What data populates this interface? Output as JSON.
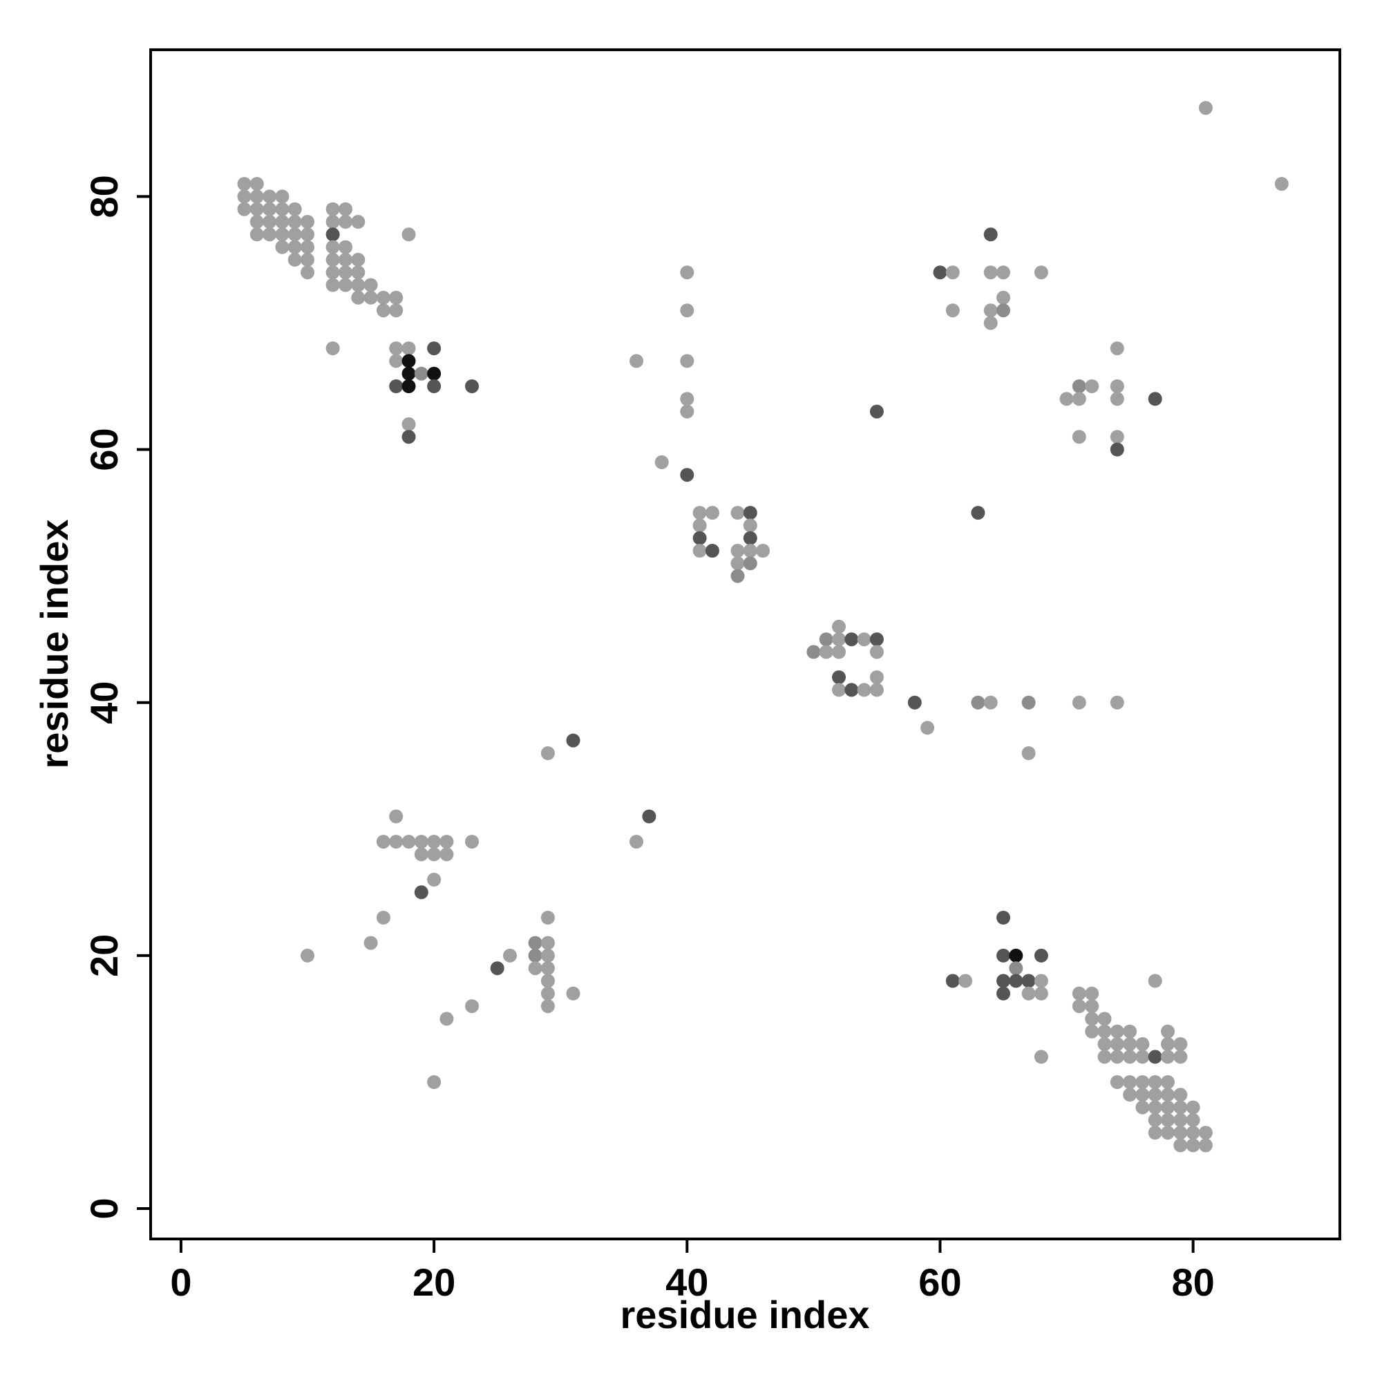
{
  "chart_data": {
    "type": "scatter",
    "title": "",
    "xlabel": "residue index",
    "ylabel": "residue index",
    "xlim": [
      -2.4,
      91.6
    ],
    "ylim": [
      -2.4,
      91.6
    ],
    "xticks": [
      0,
      20,
      40,
      60,
      80
    ],
    "yticks": [
      0,
      20,
      40,
      60,
      80
    ],
    "grid": false,
    "legend": "none",
    "shade_colors": {
      "light": "#a0a0a0",
      "medium": "#8c8c8c",
      "dark": "#555555",
      "black": "#111111"
    },
    "points": [
      [
        5,
        81,
        "light"
      ],
      [
        6,
        81,
        "light"
      ],
      [
        5,
        80,
        "light"
      ],
      [
        6,
        80,
        "light"
      ],
      [
        7,
        80,
        "light"
      ],
      [
        8,
        80,
        "light"
      ],
      [
        5,
        79,
        "light"
      ],
      [
        6,
        79,
        "light"
      ],
      [
        7,
        79,
        "light"
      ],
      [
        8,
        79,
        "light"
      ],
      [
        9,
        79,
        "light"
      ],
      [
        6,
        78,
        "light"
      ],
      [
        7,
        78,
        "light"
      ],
      [
        8,
        78,
        "light"
      ],
      [
        9,
        78,
        "light"
      ],
      [
        10,
        78,
        "light"
      ],
      [
        6,
        77,
        "light"
      ],
      [
        7,
        77,
        "light"
      ],
      [
        8,
        77,
        "light"
      ],
      [
        9,
        77,
        "light"
      ],
      [
        10,
        77,
        "light"
      ],
      [
        8,
        76,
        "light"
      ],
      [
        9,
        76,
        "light"
      ],
      [
        10,
        76,
        "light"
      ],
      [
        9,
        75,
        "light"
      ],
      [
        10,
        75,
        "light"
      ],
      [
        10,
        74,
        "light"
      ],
      [
        12,
        79,
        "light"
      ],
      [
        13,
        79,
        "light"
      ],
      [
        12,
        78,
        "light"
      ],
      [
        13,
        78,
        "light"
      ],
      [
        14,
        78,
        "light"
      ],
      [
        12,
        77,
        "dark"
      ],
      [
        18,
        77,
        "light"
      ],
      [
        12,
        76,
        "light"
      ],
      [
        13,
        76,
        "light"
      ],
      [
        12,
        75,
        "light"
      ],
      [
        13,
        75,
        "light"
      ],
      [
        14,
        75,
        "light"
      ],
      [
        12,
        74,
        "light"
      ],
      [
        13,
        74,
        "light"
      ],
      [
        14,
        74,
        "light"
      ],
      [
        12,
        73,
        "light"
      ],
      [
        13,
        73,
        "light"
      ],
      [
        14,
        73,
        "light"
      ],
      [
        15,
        73,
        "light"
      ],
      [
        14,
        72,
        "light"
      ],
      [
        15,
        72,
        "light"
      ],
      [
        16,
        72,
        "light"
      ],
      [
        17,
        72,
        "light"
      ],
      [
        16,
        71,
        "light"
      ],
      [
        17,
        71,
        "light"
      ],
      [
        12,
        68,
        "light"
      ],
      [
        17,
        68,
        "light"
      ],
      [
        18,
        68,
        "light"
      ],
      [
        20,
        68,
        "dark"
      ],
      [
        17,
        67,
        "light"
      ],
      [
        18,
        67,
        "black"
      ],
      [
        18,
        66,
        "black"
      ],
      [
        19,
        66,
        "medium"
      ],
      [
        20,
        66,
        "black"
      ],
      [
        17,
        65,
        "dark"
      ],
      [
        18,
        65,
        "black"
      ],
      [
        20,
        65,
        "dark"
      ],
      [
        23,
        65,
        "dark"
      ],
      [
        18,
        62,
        "light"
      ],
      [
        18,
        61,
        "dark"
      ],
      [
        40,
        74,
        "light"
      ],
      [
        40,
        71,
        "light"
      ],
      [
        36,
        67,
        "light"
      ],
      [
        40,
        67,
        "light"
      ],
      [
        40,
        64,
        "light"
      ],
      [
        40,
        63,
        "light"
      ],
      [
        38,
        59,
        "light"
      ],
      [
        40,
        58,
        "dark"
      ],
      [
        41,
        55,
        "light"
      ],
      [
        42,
        55,
        "light"
      ],
      [
        44,
        55,
        "light"
      ],
      [
        45,
        55,
        "dark"
      ],
      [
        41,
        54,
        "light"
      ],
      [
        45,
        54,
        "light"
      ],
      [
        41,
        53,
        "dark"
      ],
      [
        45,
        53,
        "dark"
      ],
      [
        41,
        52,
        "light"
      ],
      [
        42,
        52,
        "dark"
      ],
      [
        44,
        52,
        "light"
      ],
      [
        45,
        52,
        "light"
      ],
      [
        46,
        52,
        "light"
      ],
      [
        44,
        51,
        "light"
      ],
      [
        45,
        51,
        "medium"
      ],
      [
        44,
        50,
        "medium"
      ],
      [
        52,
        46,
        "light"
      ],
      [
        51,
        45,
        "medium"
      ],
      [
        52,
        45,
        "light"
      ],
      [
        53,
        45,
        "dark"
      ],
      [
        54,
        45,
        "light"
      ],
      [
        55,
        45,
        "dark"
      ],
      [
        50,
        44,
        "medium"
      ],
      [
        51,
        44,
        "light"
      ],
      [
        52,
        44,
        "light"
      ],
      [
        55,
        44,
        "light"
      ],
      [
        52,
        42,
        "dark"
      ],
      [
        55,
        42,
        "light"
      ],
      [
        52,
        41,
        "light"
      ],
      [
        53,
        41,
        "dark"
      ],
      [
        54,
        41,
        "light"
      ],
      [
        55,
        41,
        "light"
      ],
      [
        58,
        40,
        "dark"
      ],
      [
        59,
        38,
        "light"
      ],
      [
        63,
        40,
        "medium"
      ],
      [
        64,
        40,
        "light"
      ],
      [
        67,
        40,
        "medium"
      ],
      [
        71,
        40,
        "light"
      ],
      [
        74,
        40,
        "light"
      ],
      [
        67,
        36,
        "light"
      ],
      [
        55,
        63,
        "dark"
      ],
      [
        63,
        55,
        "dark"
      ],
      [
        64,
        77,
        "dark"
      ],
      [
        60,
        74,
        "dark"
      ],
      [
        61,
        74,
        "light"
      ],
      [
        64,
        74,
        "light"
      ],
      [
        65,
        74,
        "light"
      ],
      [
        68,
        74,
        "light"
      ],
      [
        65,
        72,
        "light"
      ],
      [
        61,
        71,
        "light"
      ],
      [
        64,
        71,
        "light"
      ],
      [
        65,
        71,
        "medium"
      ],
      [
        64,
        70,
        "light"
      ],
      [
        74,
        68,
        "light"
      ],
      [
        71,
        65,
        "medium"
      ],
      [
        72,
        65,
        "light"
      ],
      [
        74,
        65,
        "light"
      ],
      [
        70,
        64,
        "light"
      ],
      [
        71,
        64,
        "light"
      ],
      [
        74,
        64,
        "light"
      ],
      [
        77,
        64,
        "dark"
      ],
      [
        71,
        61,
        "light"
      ],
      [
        74,
        61,
        "light"
      ],
      [
        74,
        60,
        "dark"
      ],
      [
        81,
        87,
        "light"
      ],
      [
        87,
        81,
        "light"
      ],
      [
        29,
        36,
        "light"
      ],
      [
        31,
        37,
        "dark"
      ],
      [
        37,
        31,
        "dark"
      ],
      [
        36,
        29,
        "light"
      ],
      [
        17,
        31,
        "light"
      ],
      [
        16,
        29,
        "light"
      ],
      [
        17,
        29,
        "light"
      ],
      [
        18,
        29,
        "light"
      ],
      [
        19,
        29,
        "light"
      ],
      [
        20,
        29,
        "light"
      ],
      [
        21,
        29,
        "light"
      ],
      [
        23,
        29,
        "light"
      ],
      [
        19,
        28,
        "light"
      ],
      [
        20,
        28,
        "light"
      ],
      [
        21,
        28,
        "light"
      ],
      [
        20,
        26,
        "light"
      ],
      [
        19,
        25,
        "dark"
      ],
      [
        16,
        23,
        "light"
      ],
      [
        29,
        23,
        "light"
      ],
      [
        15,
        21,
        "light"
      ],
      [
        10,
        20,
        "light"
      ],
      [
        28,
        21,
        "medium"
      ],
      [
        29,
        21,
        "light"
      ],
      [
        26,
        20,
        "light"
      ],
      [
        28,
        20,
        "medium"
      ],
      [
        29,
        20,
        "light"
      ],
      [
        25,
        19,
        "dark"
      ],
      [
        28,
        19,
        "light"
      ],
      [
        29,
        19,
        "light"
      ],
      [
        29,
        18,
        "light"
      ],
      [
        29,
        17,
        "light"
      ],
      [
        31,
        17,
        "light"
      ],
      [
        23,
        16,
        "light"
      ],
      [
        29,
        16,
        "light"
      ],
      [
        21,
        15,
        "light"
      ],
      [
        20,
        10,
        "light"
      ],
      [
        65,
        23,
        "dark"
      ],
      [
        65,
        20,
        "dark"
      ],
      [
        66,
        20,
        "black"
      ],
      [
        68,
        20,
        "dark"
      ],
      [
        66,
        19,
        "medium"
      ],
      [
        61,
        18,
        "dark"
      ],
      [
        62,
        18,
        "light"
      ],
      [
        65,
        18,
        "dark"
      ],
      [
        66,
        18,
        "dark"
      ],
      [
        67,
        18,
        "dark"
      ],
      [
        68,
        18,
        "light"
      ],
      [
        65,
        17,
        "dark"
      ],
      [
        67,
        17,
        "light"
      ],
      [
        68,
        17,
        "light"
      ],
      [
        71,
        17,
        "light"
      ],
      [
        72,
        17,
        "light"
      ],
      [
        77,
        18,
        "light"
      ],
      [
        71,
        16,
        "light"
      ],
      [
        72,
        16,
        "light"
      ],
      [
        72,
        15,
        "light"
      ],
      [
        73,
        15,
        "light"
      ],
      [
        72,
        14,
        "light"
      ],
      [
        73,
        14,
        "light"
      ],
      [
        74,
        14,
        "light"
      ],
      [
        75,
        14,
        "light"
      ],
      [
        78,
        14,
        "light"
      ],
      [
        73,
        13,
        "light"
      ],
      [
        74,
        13,
        "light"
      ],
      [
        75,
        13,
        "light"
      ],
      [
        76,
        13,
        "light"
      ],
      [
        78,
        13,
        "light"
      ],
      [
        79,
        13,
        "light"
      ],
      [
        73,
        12,
        "light"
      ],
      [
        74,
        12,
        "light"
      ],
      [
        75,
        12,
        "light"
      ],
      [
        76,
        12,
        "light"
      ],
      [
        77,
        12,
        "dark"
      ],
      [
        78,
        12,
        "light"
      ],
      [
        79,
        12,
        "light"
      ],
      [
        68,
        12,
        "light"
      ],
      [
        74,
        10,
        "light"
      ],
      [
        75,
        10,
        "light"
      ],
      [
        76,
        10,
        "light"
      ],
      [
        77,
        10,
        "light"
      ],
      [
        78,
        10,
        "light"
      ],
      [
        75,
        9,
        "light"
      ],
      [
        76,
        9,
        "light"
      ],
      [
        77,
        9,
        "light"
      ],
      [
        78,
        9,
        "light"
      ],
      [
        79,
        9,
        "light"
      ],
      [
        76,
        8,
        "light"
      ],
      [
        77,
        8,
        "light"
      ],
      [
        78,
        8,
        "light"
      ],
      [
        79,
        8,
        "light"
      ],
      [
        80,
        8,
        "light"
      ],
      [
        77,
        7,
        "light"
      ],
      [
        78,
        7,
        "light"
      ],
      [
        79,
        7,
        "light"
      ],
      [
        80,
        7,
        "light"
      ],
      [
        77,
        6,
        "light"
      ],
      [
        78,
        6,
        "light"
      ],
      [
        79,
        6,
        "light"
      ],
      [
        80,
        6,
        "light"
      ],
      [
        81,
        6,
        "light"
      ],
      [
        79,
        5,
        "light"
      ],
      [
        80,
        5,
        "light"
      ],
      [
        81,
        5,
        "light"
      ]
    ]
  }
}
